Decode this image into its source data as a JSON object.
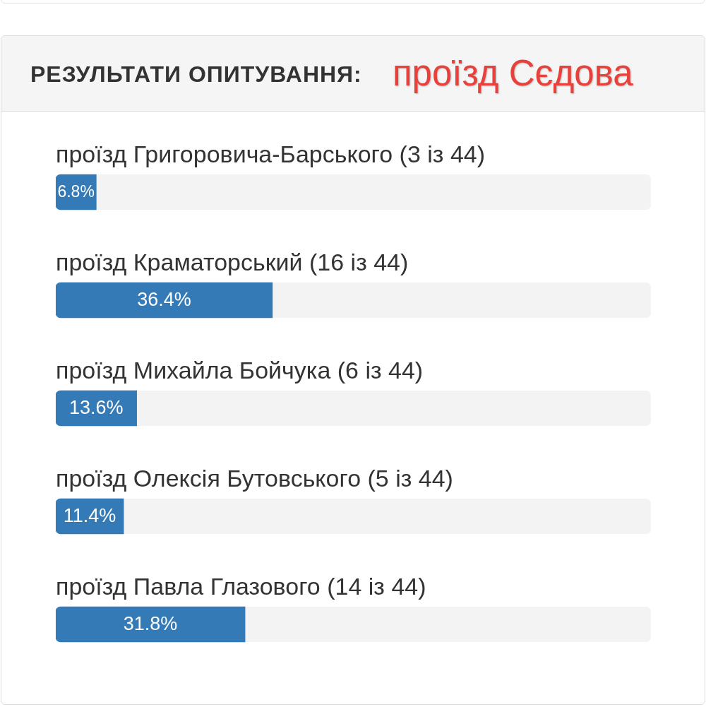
{
  "chart_data": {
    "type": "bar",
    "orientation": "horizontal",
    "title": "РЕЗУЛЬТАТИ ОПИТУВАННЯ:",
    "subtitle": "проїзд Сєдова",
    "categories": [
      "проїзд Григоровича-Барського (3 із 44)",
      "проїзд Краматорський (16 із 44)",
      "проїзд Михайла Бойчука (6 із 44)",
      "проїзд Олексія Бутовського (5 із 44)",
      "проїзд Павла Глазового (14 із 44)"
    ],
    "values": [
      6.8,
      36.4,
      13.6,
      11.4,
      31.8
    ],
    "color": "#337ab7",
    "value_labels": [
      "6.8%",
      "36.4%",
      "13.6%",
      "11.4%",
      "31.8%"
    ],
    "xlim": [
      0,
      100
    ],
    "tick_labels": "y"
  }
}
